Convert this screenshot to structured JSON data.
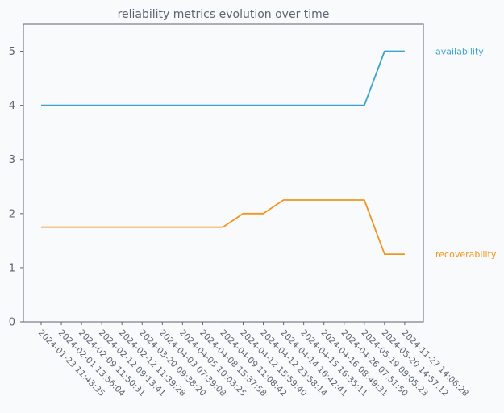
{
  "chart_data": {
    "type": "line",
    "title": "reliability metrics evolution over time",
    "xlabel": "",
    "ylabel": "",
    "ylim": [
      0,
      5.5
    ],
    "yticks": [
      0,
      1,
      2,
      3,
      4,
      5
    ],
    "grid": false,
    "legend": "inline labels at right end of each line",
    "x": [
      "2024-01-23 11:43:35",
      "2024-02-01 13:56:04",
      "2024-02-09 11:50:31",
      "2024-02-12 09:13:41",
      "2024-02-12 11:39:28",
      "2024-03-20 09:38:20",
      "2024-04-03 07:39:08",
      "2024-04-05 10:03:25",
      "2024-04-08 15:37:58",
      "2024-04-09 11:08:42",
      "2024-04-12 15:59:40",
      "2024-04-12 23:58:14",
      "2024-04-14 16:42:41",
      "2024-04-15 16:35:11",
      "2024-04-16 08:49:31",
      "2024-04-26 07:51:50",
      "2024-05-19 09:05:23",
      "2024-05-20 14:57:12",
      "2024-11-27 14:06:28"
    ],
    "series": [
      {
        "name": "availability",
        "color": "#3ba3d0",
        "values": [
          4,
          4,
          4,
          4,
          4,
          4,
          4,
          4,
          4,
          4,
          4,
          4,
          4,
          4,
          4,
          4,
          4,
          5,
          5
        ]
      },
      {
        "name": "recoverability",
        "color": "#f0961e",
        "values": [
          1.75,
          1.75,
          1.75,
          1.75,
          1.75,
          1.75,
          1.75,
          1.75,
          1.75,
          1.75,
          2.0,
          2.0,
          2.25,
          2.25,
          2.25,
          2.25,
          2.25,
          1.25,
          1.25
        ]
      }
    ]
  }
}
